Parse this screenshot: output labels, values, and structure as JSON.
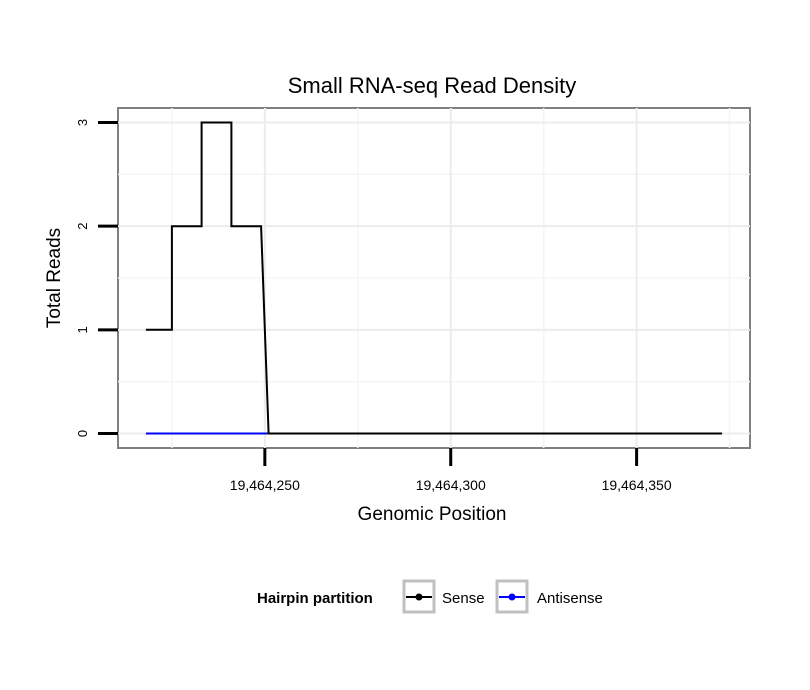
{
  "chart_data": {
    "type": "line",
    "title": "Small RNA-seq Read Density",
    "xlabel": "Genomic Position",
    "ylabel": "Total Reads",
    "xlim": [
      19464210.5,
      19464380.5
    ],
    "ylim": [
      -0.14,
      3.14
    ],
    "x_ticks": [
      19464250,
      19464300,
      19464350
    ],
    "x_tick_labels": [
      "19,464,250",
      "19,464,300",
      "19,464,350"
    ],
    "y_ticks": [
      0,
      1,
      2,
      3
    ],
    "y_tick_labels": [
      "0",
      "1",
      "2",
      "3"
    ],
    "grid": true,
    "legend": {
      "title": "Hairpin partition",
      "position": "bottom",
      "entries": [
        "Sense",
        "Antisense"
      ]
    },
    "series": [
      {
        "name": "Sense",
        "color": "#000000",
        "x": [
          19464218,
          19464225,
          19464225,
          19464233,
          19464233,
          19464241,
          19464241,
          19464249,
          19464249,
          19464251,
          19464251,
          19464373
        ],
        "values": [
          1,
          1,
          2,
          2,
          3,
          3,
          2,
          2,
          2,
          0,
          0,
          0
        ]
      },
      {
        "name": "Antisense",
        "color": "#0000ff",
        "x": [
          19464218,
          19464251
        ],
        "values": [
          0,
          0
        ]
      }
    ]
  }
}
